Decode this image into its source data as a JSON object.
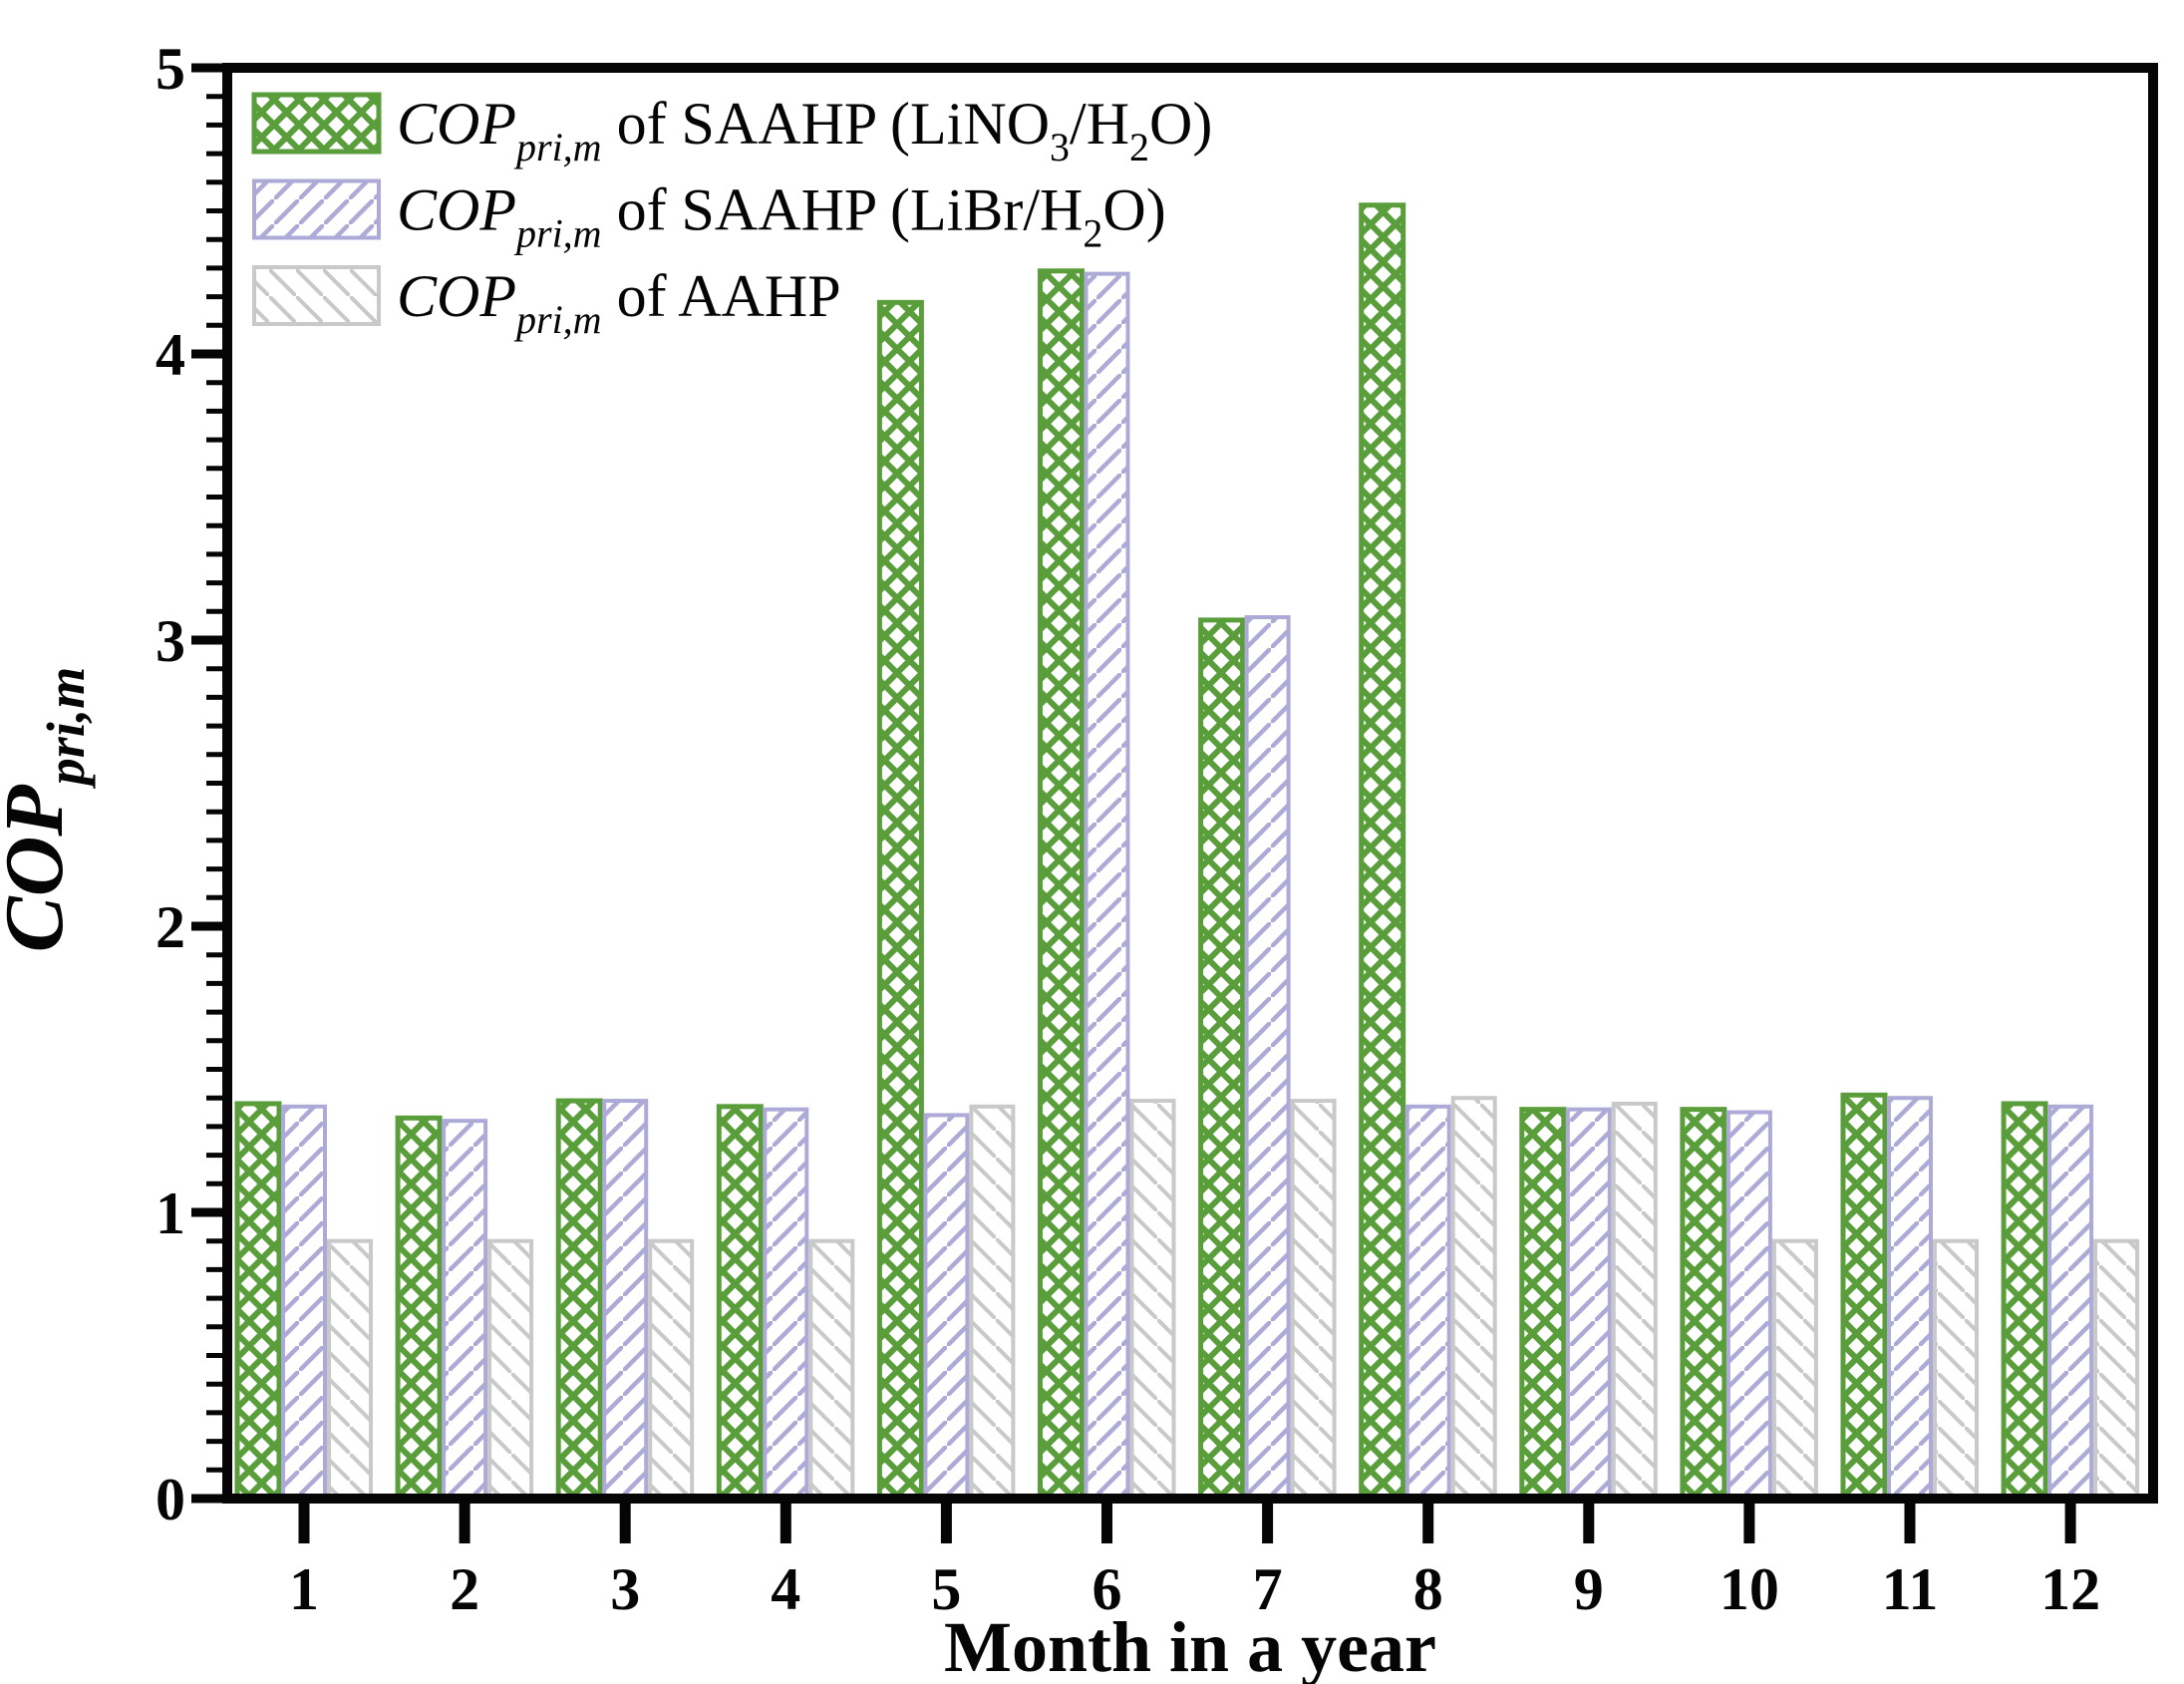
{
  "page": {
    "background": "#ffffff",
    "axis_color": "#050505"
  },
  "chart_data": {
    "type": "bar",
    "title": "",
    "xlabel": "Month in a year",
    "ylabel": "COP_pri,m",
    "ylabel_parts": [
      {
        "t": "COP",
        "s": "ib"
      },
      {
        "t": "pri,m",
        "s": "ibs"
      }
    ],
    "categories": [
      1,
      2,
      3,
      4,
      5,
      6,
      7,
      8,
      9,
      10,
      11,
      12
    ],
    "x_tick_labels": [
      "1",
      "2",
      "3",
      "4",
      "5",
      "6",
      "7",
      "8",
      "9",
      "10",
      "11",
      "12"
    ],
    "ylim": [
      0,
      5
    ],
    "y_major_ticks": [
      "0",
      "1",
      "2",
      "3",
      "4",
      "5"
    ],
    "y_minor_step": 0.1,
    "grid": false,
    "legend_position": "top-left",
    "series": [
      {
        "name": "COP_pri,m of SAAHP (LiNO3/H2O)",
        "color": "#5a9e3c",
        "hatch": "crosshatch",
        "values": [
          1.38,
          1.33,
          1.39,
          1.37,
          4.18,
          4.29,
          3.07,
          4.52,
          1.36,
          1.36,
          1.41,
          1.38
        ]
      },
      {
        "name": "COP_pri,m of SAAHP (LiBr/H2O)",
        "color": "#aeaad8",
        "hatch": "diagonal-up",
        "values": [
          1.37,
          1.32,
          1.39,
          1.36,
          1.34,
          4.28,
          3.08,
          1.37,
          1.36,
          1.35,
          1.4,
          1.37
        ]
      },
      {
        "name": "COP_pri,m of AAHP",
        "color": "#c9c9c9",
        "hatch": "diagonal-down",
        "values": [
          0.9,
          0.9,
          0.9,
          0.9,
          1.37,
          1.39,
          1.39,
          1.4,
          1.38,
          0.9,
          0.9,
          0.9
        ]
      }
    ],
    "legend": {
      "items": [
        {
          "series": 0,
          "parts": [
            {
              "t": "COP",
              "s": "i"
            },
            {
              "t": "pri,m",
              "s": "is"
            },
            {
              "t": " of SAAHP (LiNO",
              "s": ""
            },
            {
              "t": "3",
              "s": "s"
            },
            {
              "t": "/H",
              "s": ""
            },
            {
              "t": "2",
              "s": "s"
            },
            {
              "t": "O)",
              "s": ""
            }
          ]
        },
        {
          "series": 1,
          "parts": [
            {
              "t": "COP",
              "s": "i"
            },
            {
              "t": "pri,m",
              "s": "is"
            },
            {
              "t": " of SAAHP (LiBr/H",
              "s": ""
            },
            {
              "t": "2",
              "s": "s"
            },
            {
              "t": "O)",
              "s": ""
            }
          ]
        },
        {
          "series": 2,
          "parts": [
            {
              "t": "COP",
              "s": "i"
            },
            {
              "t": "pri,m",
              "s": "is"
            },
            {
              "t": " of AAHP",
              "s": ""
            }
          ]
        }
      ]
    }
  }
}
